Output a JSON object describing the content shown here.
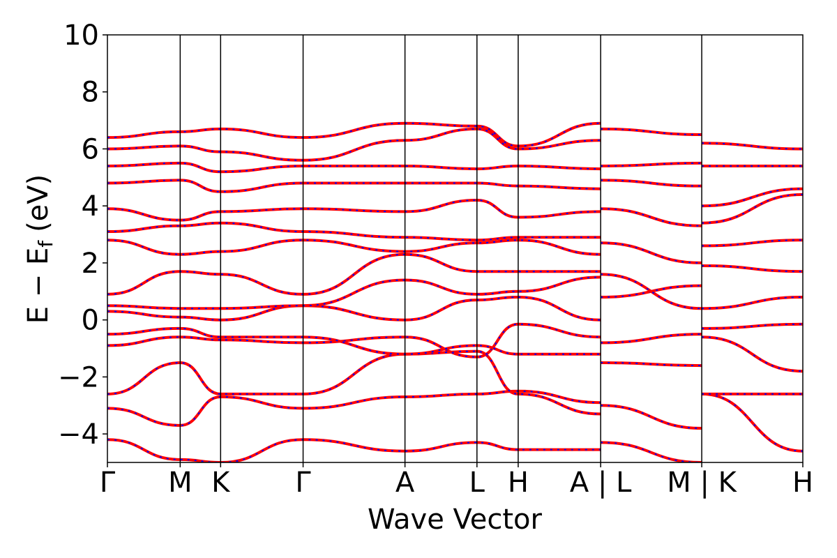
{
  "chart_data": {
    "type": "line",
    "xlabel": "Wave Vector",
    "ylabel_main": "E − E",
    "ylabel_sub": "f",
    "ylabel_unit": "(eV)",
    "ylim": [
      -5,
      10
    ],
    "yticks": [
      10,
      8,
      6,
      4,
      2,
      0,
      -2,
      -4
    ],
    "ytick_labels": [
      "10",
      "8",
      "6",
      "4",
      "2",
      "0",
      "−2",
      "−4"
    ],
    "xlim": [
      0,
      8.6
    ],
    "grid": false,
    "legend": "none",
    "colors": {
      "bands_primary": "#ff0000",
      "bands_secondary": "#0000ff",
      "kpath_lines": "#000000"
    },
    "kpoints": [
      {
        "label": "Γ",
        "x": 0.0
      },
      {
        "label": "M",
        "x": 0.9
      },
      {
        "label": "K",
        "x": 1.4
      },
      {
        "label": "Γ",
        "x": 2.42
      },
      {
        "label": "A",
        "x": 3.68
      },
      {
        "label": "L",
        "x": 4.57
      },
      {
        "label": "H",
        "x": 5.08
      },
      {
        "label": "A | L",
        "x": 6.1
      },
      {
        "label": "M | K",
        "x": 7.35
      },
      {
        "label": "H",
        "x": 8.6
      }
    ],
    "series": [
      {
        "x": [
          0.0,
          0.9,
          1.4,
          2.42,
          3.68,
          4.57,
          5.08,
          6.1
        ],
        "values": [
          -4.2,
          -4.9,
          -5.0,
          -4.2,
          -4.6,
          -4.3,
          -4.55,
          -4.55
        ]
      },
      {
        "x": [
          0.0,
          0.9,
          1.4,
          2.42,
          3.68,
          4.57,
          5.08,
          6.1
        ],
        "values": [
          -3.1,
          -3.7,
          -2.7,
          -3.1,
          -2.7,
          -2.6,
          -2.5,
          -2.9
        ]
      },
      {
        "x": [
          0.0,
          0.9,
          1.4,
          2.42,
          3.68,
          4.57,
          5.08,
          6.1
        ],
        "values": [
          -2.6,
          -1.5,
          -2.6,
          -2.6,
          -1.2,
          -1.1,
          -2.6,
          -3.3
        ]
      },
      {
        "x": [
          0.0,
          0.9,
          1.4,
          2.42,
          3.68,
          4.57,
          5.08,
          6.1
        ],
        "values": [
          -0.9,
          -0.6,
          -0.7,
          -0.8,
          -0.6,
          -1.3,
          -0.15,
          -0.6
        ]
      },
      {
        "x": [
          0.0,
          0.9,
          1.4,
          2.42,
          3.68,
          4.57,
          5.08,
          6.1
        ],
        "values": [
          -0.5,
          -0.3,
          -0.6,
          -0.6,
          -1.2,
          -0.9,
          -1.2,
          -1.2
        ]
      },
      {
        "x": [
          0.0,
          0.9,
          1.4,
          2.42,
          3.68,
          4.57,
          5.08,
          6.1
        ],
        "values": [
          0.3,
          0.1,
          0.0,
          0.5,
          0.0,
          0.7,
          0.8,
          0.0
        ]
      },
      {
        "x": [
          0.0,
          0.9,
          1.4,
          2.42,
          3.68,
          4.57,
          5.08,
          6.1
        ],
        "values": [
          0.5,
          0.4,
          0.4,
          0.5,
          1.4,
          0.9,
          1.0,
          1.5
        ]
      },
      {
        "x": [
          0.0,
          0.9,
          1.4,
          2.42,
          3.68,
          4.57,
          5.08,
          6.1
        ],
        "values": [
          0.9,
          1.7,
          1.6,
          0.9,
          2.3,
          1.7,
          1.7,
          1.7
        ]
      },
      {
        "x": [
          0.0,
          0.9,
          1.4,
          2.42,
          3.68,
          4.57,
          5.08,
          6.1
        ],
        "values": [
          2.8,
          2.3,
          2.4,
          2.8,
          2.4,
          2.7,
          2.8,
          2.3
        ]
      },
      {
        "x": [
          0.0,
          0.9,
          1.4,
          2.42,
          3.68,
          4.57,
          5.08,
          6.1
        ],
        "values": [
          3.1,
          3.3,
          3.4,
          3.1,
          2.9,
          2.8,
          2.9,
          2.9
        ]
      },
      {
        "x": [
          0.0,
          0.9,
          1.4,
          2.42,
          3.68,
          4.57,
          5.08,
          6.1
        ],
        "values": [
          3.9,
          3.5,
          3.8,
          3.9,
          3.8,
          4.2,
          3.6,
          3.8
        ]
      },
      {
        "x": [
          0.0,
          0.9,
          1.4,
          2.42,
          3.68,
          4.57,
          5.08,
          6.1
        ],
        "values": [
          4.8,
          4.9,
          4.5,
          4.8,
          4.8,
          4.8,
          4.7,
          4.6
        ]
      },
      {
        "x": [
          0.0,
          0.9,
          1.4,
          2.42,
          3.68,
          4.57,
          5.08,
          6.1
        ],
        "values": [
          5.4,
          5.5,
          5.2,
          5.4,
          5.4,
          5.3,
          5.4,
          5.3
        ]
      },
      {
        "x": [
          0.0,
          0.9,
          1.4,
          2.42,
          3.68,
          4.57,
          5.08,
          6.1
        ],
        "values": [
          6.0,
          6.1,
          5.9,
          5.6,
          6.3,
          6.7,
          6.0,
          6.3
        ]
      },
      {
        "x": [
          0.0,
          0.9,
          1.4,
          2.42,
          3.68,
          4.57,
          5.08,
          6.1
        ],
        "values": [
          6.4,
          6.6,
          6.7,
          6.4,
          6.9,
          6.8,
          6.1,
          6.9
        ]
      },
      {
        "x": [
          6.1,
          7.35
        ],
        "values": [
          -4.3,
          -5.0
        ]
      },
      {
        "x": [
          6.1,
          7.35
        ],
        "values": [
          -3.0,
          -3.8
        ]
      },
      {
        "x": [
          6.1,
          7.35
        ],
        "values": [
          -1.5,
          -1.6
        ]
      },
      {
        "x": [
          6.1,
          7.35
        ],
        "values": [
          -0.8,
          -0.5
        ]
      },
      {
        "x": [
          6.1,
          7.35
        ],
        "values": [
          0.8,
          1.2
        ]
      },
      {
        "x": [
          6.1,
          7.35
        ],
        "values": [
          1.6,
          0.4
        ]
      },
      {
        "x": [
          6.1,
          7.35
        ],
        "values": [
          2.7,
          2.0
        ]
      },
      {
        "x": [
          6.1,
          7.35
        ],
        "values": [
          3.9,
          3.3
        ]
      },
      {
        "x": [
          6.1,
          7.35
        ],
        "values": [
          4.9,
          4.7
        ]
      },
      {
        "x": [
          6.1,
          7.35
        ],
        "values": [
          5.4,
          5.5
        ]
      },
      {
        "x": [
          6.1,
          7.35
        ],
        "values": [
          6.7,
          6.5
        ]
      },
      {
        "x": [
          7.35,
          8.6
        ],
        "values": [
          -2.6,
          -4.6
        ]
      },
      {
        "x": [
          7.35,
          8.6
        ],
        "values": [
          -2.6,
          -2.6
        ]
      },
      {
        "x": [
          7.35,
          8.6
        ],
        "values": [
          -0.6,
          -1.8
        ]
      },
      {
        "x": [
          7.35,
          8.6
        ],
        "values": [
          -0.3,
          -0.15
        ]
      },
      {
        "x": [
          7.35,
          8.6
        ],
        "values": [
          0.4,
          0.8
        ]
      },
      {
        "x": [
          7.35,
          8.6
        ],
        "values": [
          1.9,
          1.7
        ]
      },
      {
        "x": [
          7.35,
          8.6
        ],
        "values": [
          2.6,
          2.8
        ]
      },
      {
        "x": [
          7.35,
          8.6
        ],
        "values": [
          3.4,
          4.4
        ]
      },
      {
        "x": [
          7.35,
          8.6
        ],
        "values": [
          4.0,
          4.6
        ]
      },
      {
        "x": [
          7.35,
          8.6
        ],
        "values": [
          5.4,
          5.4
        ]
      },
      {
        "x": [
          7.35,
          8.6
        ],
        "values": [
          6.2,
          6.0
        ]
      }
    ]
  }
}
